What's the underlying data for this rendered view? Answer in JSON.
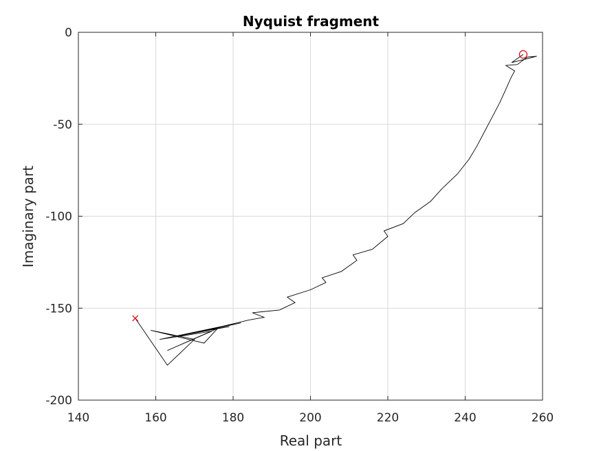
{
  "chart_data": {
    "type": "line",
    "title": "Nyquist fragment",
    "xlabel": "Real part",
    "ylabel": "Imaginary part",
    "xlim": [
      140,
      260
    ],
    "ylim": [
      -200,
      0
    ],
    "xticks": [
      140,
      160,
      180,
      200,
      220,
      240,
      260
    ],
    "yticks": [
      0,
      -50,
      -100,
      -150,
      -200
    ],
    "xtick_labels": [
      "140",
      "160",
      "180",
      "200",
      "220",
      "240",
      "260"
    ],
    "ytick_labels": [
      "0",
      "-50",
      "-100",
      "-150",
      "-200"
    ],
    "grid": true,
    "colors": {
      "curve": "#000000",
      "markers": "#e0000b",
      "grid": "#d9d9d9",
      "axes": "#262626"
    },
    "series": [
      {
        "values": [
          [
            154.7,
            -155.5
          ],
          [
            163.0,
            -181.0
          ],
          [
            170.0,
            -167.0
          ],
          [
            158.7,
            -162.0
          ],
          [
            172.5,
            -169.0
          ],
          [
            176.0,
            -161.0
          ],
          [
            163.0,
            -173.0
          ],
          [
            174.5,
            -162.5
          ],
          [
            161.0,
            -167.0
          ],
          [
            177.0,
            -160.0
          ],
          [
            166.0,
            -165.0
          ],
          [
            179.0,
            -160.0
          ],
          [
            171.0,
            -163.0
          ],
          [
            182.0,
            -158.0
          ],
          [
            175.0,
            -161.0
          ],
          [
            184.0,
            -156.5
          ],
          [
            188.0,
            -155.0
          ],
          [
            185.0,
            -152.5
          ],
          [
            192.0,
            -151.0
          ],
          [
            196.0,
            -147.0
          ],
          [
            194.0,
            -144.0
          ],
          [
            200.0,
            -140.0
          ],
          [
            204.0,
            -136.0
          ],
          [
            203.0,
            -133.5
          ],
          [
            208.0,
            -130.0
          ],
          [
            212.0,
            -124.0
          ],
          [
            211.0,
            -121.0
          ],
          [
            216.0,
            -118.0
          ],
          [
            220.0,
            -111.0
          ],
          [
            219.0,
            -108.0
          ],
          [
            224.0,
            -104.0
          ],
          [
            227.0,
            -98.0
          ],
          [
            231.0,
            -92.0
          ],
          [
            234.0,
            -85.0
          ],
          [
            238.0,
            -77.0
          ],
          [
            241.0,
            -69.0
          ],
          [
            243.0,
            -62.0
          ],
          [
            245.0,
            -54.0
          ],
          [
            247.0,
            -46.0
          ],
          [
            249.0,
            -38.0
          ],
          [
            250.5,
            -31.0
          ],
          [
            252.0,
            -24.0
          ],
          [
            252.8,
            -21.0
          ],
          [
            250.5,
            -18.0
          ],
          [
            253.5,
            -17.5
          ],
          [
            256.0,
            -13.5
          ],
          [
            258.5,
            -13.0
          ],
          [
            252.0,
            -16.5
          ],
          [
            255.0,
            -12.0
          ]
        ]
      }
    ],
    "markers": [
      {
        "symbol": "x",
        "x": 154.7,
        "y": -155.5
      },
      {
        "symbol": "o",
        "x": 255.0,
        "y": -12.0
      }
    ]
  }
}
